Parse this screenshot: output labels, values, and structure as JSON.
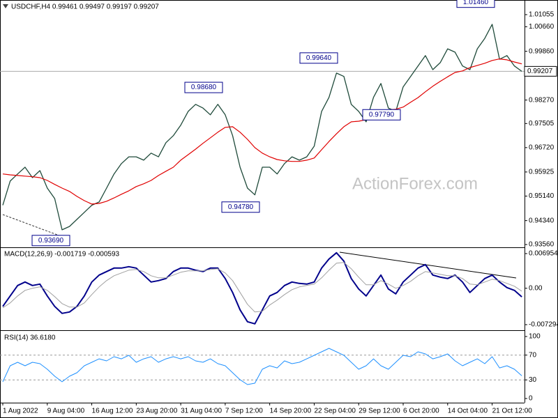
{
  "chart_data": [
    {
      "type": "line",
      "title": "USDCHF,H4  0.99461 0.99497 0.99197 0.99207",
      "watermark": "ActionForex.com",
      "categories": [
        "1 Aug 2022",
        null,
        null,
        null,
        null,
        null,
        "9 Aug 04:00",
        null,
        null,
        null,
        null,
        null,
        "16 Aug 12:00",
        null,
        null,
        null,
        null,
        null,
        "23 Aug 20:00",
        null,
        null,
        null,
        null,
        null,
        "31 Aug 04:00",
        null,
        null,
        null,
        null,
        null,
        "7 Sep 12:00",
        null,
        null,
        null,
        null,
        null,
        "14 Sep 20:00",
        null,
        null,
        null,
        null,
        null,
        "22 Sep 04:00",
        null,
        null,
        null,
        null,
        null,
        "29 Sep 12:00",
        null,
        null,
        null,
        null,
        null,
        "6 Oct 20:00",
        null,
        null,
        null,
        null,
        null,
        "14 Oct 04:00",
        null,
        null,
        null,
        null,
        null,
        "21 Oct 12:00",
        null,
        null,
        null,
        null
      ],
      "series": [
        {
          "color": "#1f4a3a",
          "values": [
            0.9484,
            0.9563,
            0.9586,
            0.9608,
            0.9574,
            0.9597,
            0.954,
            0.9506,
            0.9404,
            0.9415,
            0.9438,
            0.9461,
            0.9484,
            0.9495,
            0.954,
            0.9586,
            0.962,
            0.9642,
            0.9642,
            0.9631,
            0.9654,
            0.9642,
            0.9688,
            0.9711,
            0.9745,
            0.979,
            0.9813,
            0.9801,
            0.9779,
            0.9813,
            0.9779,
            0.9711,
            0.9608,
            0.954,
            0.9518,
            0.9608,
            0.9608,
            0.9586,
            0.962,
            0.9642,
            0.9631,
            0.9642,
            0.9677,
            0.979,
            0.9836,
            0.9915,
            0.9904,
            0.9813,
            0.979,
            0.9756,
            0.9836,
            0.9881,
            0.9801,
            0.979,
            0.987,
            0.9904,
            0.9938,
            0.9972,
            0.9926,
            0.9949,
            0.9994,
            0.9983,
            0.9938,
            0.9926,
            0.9994,
            1.0028,
            1.0074,
            0.996,
            0.9972,
            0.9938,
            0.99207
          ]
        },
        {
          "color": "#e00000",
          "values": [
            0.9586,
            0.9583,
            0.9581,
            0.9579,
            0.9577,
            0.9574,
            0.9565,
            0.9552,
            0.954,
            0.9529,
            0.9513,
            0.9499,
            0.9488,
            0.949,
            0.9497,
            0.9508,
            0.952,
            0.9531,
            0.9545,
            0.9554,
            0.9565,
            0.9581,
            0.9595,
            0.9608,
            0.9631,
            0.9649,
            0.9667,
            0.9686,
            0.9704,
            0.9722,
            0.9738,
            0.974,
            0.9722,
            0.9699,
            0.9672,
            0.9654,
            0.9642,
            0.9633,
            0.9629,
            0.9627,
            0.9627,
            0.9631,
            0.9638,
            0.9665,
            0.9692,
            0.9717,
            0.974,
            0.9756,
            0.9758,
            0.9763,
            0.977,
            0.9786,
            0.9795,
            0.9797,
            0.9804,
            0.982,
            0.9835,
            0.9854,
            0.9872,
            0.9888,
            0.9903,
            0.9917,
            0.9922,
            0.9933,
            0.994,
            0.9947,
            0.9956,
            0.9961,
            0.9958,
            0.9951,
            0.9945
          ]
        }
      ],
      "ylim": [
        0.93469,
        1.01532
      ],
      "yticks": [
        {
          "value": 1.01055,
          "label": "1.01055"
        },
        {
          "value": 1.0066,
          "label": "1.00660"
        },
        {
          "value": 0.9986,
          "label": "0.99860"
        },
        {
          "value": 0.9827,
          "label": "0.98270"
        },
        {
          "value": 0.97505,
          "label": "0.97505"
        },
        {
          "value": 0.9672,
          "label": "0.96720"
        },
        {
          "value": 0.95925,
          "label": "0.95925"
        },
        {
          "value": 0.9514,
          "label": "0.95140"
        },
        {
          "value": 0.9434,
          "label": "0.94340"
        },
        {
          "value": 0.9356,
          "label": "0.93560"
        }
      ],
      "annotations": [
        {
          "value": 1.0146,
          "label": "1.01460"
        },
        {
          "value": 0.9964,
          "label": "0.99640"
        },
        {
          "value": 0.9868,
          "label": "0.98680"
        },
        {
          "value": 0.9779,
          "label": "0.97790"
        },
        {
          "value": 0.9478,
          "label": "0.94780"
        },
        {
          "value": 0.9369,
          "label": "0.93690"
        }
      ],
      "last_price": {
        "value": 0.99207,
        "label": "0.99207"
      }
    },
    {
      "type": "line",
      "title": "MACD(12,26,9) -0.001719 -0.000593",
      "series": [
        {
          "color": "#00008b",
          "values": [
            -0.003632,
            -0.001537,
            0.000559,
            0.001257,
            0.000559,
            0.000838,
            -0.001537,
            -0.003632,
            -0.005029,
            -0.00475,
            -0.003632,
            -0.001537,
            0.001257,
            0.002654,
            0.003353,
            0.004051,
            0.004051,
            0.004331,
            0.004051,
            0.002654,
            0.001257,
            0.001537,
            0.001956,
            0.003353,
            0.004051,
            0.004051,
            0.003632,
            0.003353,
            0.004051,
            0.004051,
            0.001956,
            -0.000838,
            -0.004331,
            -0.006706,
            -0.007125,
            -0.004331,
            -0.001537,
            -0.000838,
            0.000559,
            0.001257,
            0.000978,
            0.000838,
            0.001257,
            0.004051,
            0.005867,
            0.007125,
            0.005448,
            0.001956,
            -0.00014,
            -0.001537,
            0.000559,
            0.002654,
            -0.00014,
            -0.001118,
            0.001257,
            0.002654,
            0.004051,
            0.00475,
            0.002654,
            0.002235,
            0.001956,
            0.002654,
            0.001257,
            -0.000838,
            0.000559,
            0.001956,
            0.002654,
            0.001257,
            0.00014,
            -0.000419,
            -0.001719
          ]
        },
        {
          "color": "#a0a0a0",
          "values": [
            -0.003912,
            -0.002934,
            -0.001537,
            -0.000419,
            0,
            0.000279,
            -0.000419,
            -0.001676,
            -0.003073,
            -0.003772,
            -0.003772,
            -0.002934,
            -0.001257,
            0.000279,
            0.001537,
            0.002515,
            0.003073,
            0.003632,
            0.003772,
            0.003353,
            0.002515,
            0.002096,
            0.002096,
            0.002654,
            0.003213,
            0.003493,
            0.003493,
            0.003493,
            0.003772,
            0.003912,
            0.003073,
            0.001537,
            -0.000838,
            -0.003213,
            -0.00475,
            -0.00461,
            -0.003353,
            -0.002375,
            -0.001257,
            -0.000279,
            0.000279,
            0.000559,
            0.000838,
            0.002096,
            0.003632,
            0.005029,
            0.005169,
            0.003912,
            0.002235,
            0.000699,
            0.000699,
            0.001537,
            0.000838,
            0,
            0.000559,
            0.001397,
            0.002515,
            0.003353,
            0.003073,
            0.002794,
            0.002515,
            0.002515,
            0.001956,
            0.000838,
            0.000699,
            0.001257,
            0.001816,
            0.001537,
            0.000978,
            0.000419,
            -0.000593
          ]
        }
      ],
      "ylim": [
        -0.008272,
        0.007932
      ],
      "yticks": [
        0.006954,
        {
          "value": 0,
          "label": "0.00"
        },
        -0.007294
      ]
    },
    {
      "type": "line",
      "title": "RSI(14) 36.6180",
      "series": [
        {
          "color": "#1e90ff",
          "values": [
            27.0,
            52.8,
            58.4,
            52.8,
            58.4,
            56.2,
            47.2,
            36.0,
            27.0,
            36.0,
            41.6,
            52.8,
            58.4,
            64.0,
            60.7,
            67.4,
            64.0,
            69.7,
            58.4,
            64.0,
            67.4,
            58.4,
            64.0,
            67.4,
            64.0,
            67.4,
            60.7,
            58.4,
            64.0,
            56.2,
            52.8,
            41.6,
            30.3,
            22.5,
            24.7,
            47.2,
            52.8,
            49.4,
            60.7,
            56.2,
            58.4,
            64.0,
            69.7,
            75.3,
            80.9,
            75.3,
            69.7,
            58.4,
            47.2,
            52.8,
            64.0,
            52.8,
            47.2,
            58.4,
            69.7,
            67.4,
            75.3,
            71.9,
            64.0,
            67.4,
            71.9,
            60.7,
            52.8,
            58.4,
            64.0,
            56.2,
            67.4,
            49.4,
            52.8,
            47.2,
            36.618
          ]
        }
      ],
      "ylim": [
        -5.6,
        107.9
      ],
      "yticks": [
        100,
        70,
        30,
        0
      ],
      "levels": [
        30,
        70
      ]
    }
  ]
}
